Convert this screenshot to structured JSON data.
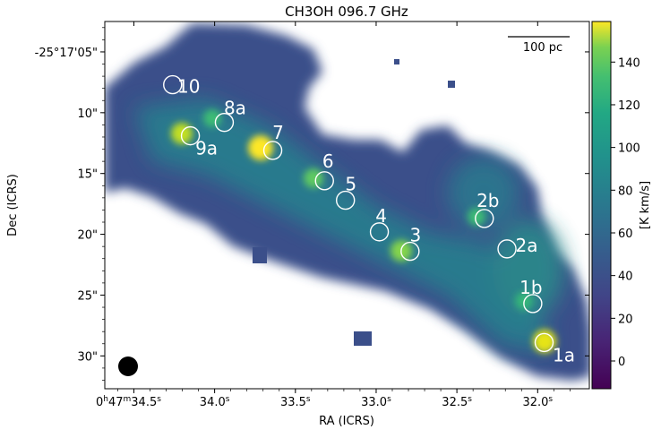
{
  "chart_data": {
    "type": "heatmap",
    "title": "CH3OH 096.7 GHz",
    "xlabel": "RA (ICRS)",
    "ylabel": "Dec (ICRS)",
    "x_ticks": [
      {
        "v": 34.5,
        "label_main": "0h47m34.5s"
      },
      {
        "v": 34.0,
        "label_main": "34.0s"
      },
      {
        "v": 33.5,
        "label_main": "33.5s"
      },
      {
        "v": 33.0,
        "label_main": "33.0s"
      },
      {
        "v": 32.5,
        "label_main": "32.5s"
      },
      {
        "v": 32.0,
        "label_main": "32.0s"
      }
    ],
    "x_tick_labels": [
      "0",
      "h",
      "47",
      "m",
      "34.5",
      "s",
      "34.0",
      "s",
      "33.5",
      "s",
      "33.0",
      "s",
      "32.5",
      "s",
      "32.0",
      "s"
    ],
    "y_ticks": [
      {
        "v": 5,
        "label": "-25°17'05\""
      },
      {
        "v": 10,
        "label": "10\""
      },
      {
        "v": 15,
        "label": "15\""
      },
      {
        "v": 20,
        "label": "20\""
      },
      {
        "v": 25,
        "label": "25\""
      },
      {
        "v": 30,
        "label": "30\""
      }
    ],
    "xlim": [
      34.68,
      31.68
    ],
    "ylim": [
      2.5,
      32.7
    ],
    "colorbar": {
      "label": "[K km/s]",
      "range": [
        -13,
        159
      ],
      "ticks": [
        0,
        20,
        40,
        60,
        80,
        100,
        120,
        140
      ],
      "colormap": "viridis"
    },
    "scalebar": {
      "label": "100 pc"
    },
    "beam": "filled black circle, lower-left",
    "regions": [
      {
        "name": "1a",
        "ra": 31.96,
        "dec": 28.9,
        "peak": 155
      },
      {
        "name": "1b",
        "ra": 32.03,
        "dec": 25.7,
        "peak": 90
      },
      {
        "name": "2a",
        "ra": 32.19,
        "dec": 21.2,
        "peak": 60
      },
      {
        "name": "2b",
        "ra": 32.33,
        "dec": 18.7,
        "peak": 95
      },
      {
        "name": "3",
        "ra": 32.79,
        "dec": 21.4,
        "peak": 135
      },
      {
        "name": "4",
        "ra": 32.98,
        "dec": 19.8,
        "peak": 55
      },
      {
        "name": "5",
        "ra": 33.19,
        "dec": 17.2,
        "peak": 55
      },
      {
        "name": "6",
        "ra": 33.32,
        "dec": 15.6,
        "peak": 125
      },
      {
        "name": "7",
        "ra": 33.64,
        "dec": 13.1,
        "peak": 158
      },
      {
        "name": "8a",
        "ra": 33.94,
        "dec": 10.8,
        "peak": 100
      },
      {
        "name": "9a",
        "ra": 34.15,
        "dec": 11.9,
        "peak": 150
      },
      {
        "name": "10",
        "ra": 34.26,
        "dec": 7.7,
        "peak": 40
      }
    ]
  }
}
